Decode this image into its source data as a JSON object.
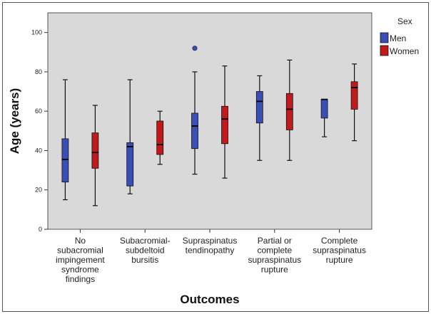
{
  "chart_data": {
    "type": "boxplot",
    "ylabel": "Age (years)",
    "xlabel": "Outcomes",
    "ylim": [
      0,
      110
    ],
    "yticks": [
      0,
      20,
      40,
      60,
      80,
      100
    ],
    "grid": false,
    "legend": {
      "title": "Sex",
      "position": "top-right"
    },
    "categories": [
      [
        "No",
        "subacromial",
        "impingement",
        "syndrome",
        "findings"
      ],
      [
        "Subacromial-",
        "subdeltoid",
        "bursitis"
      ],
      [
        "Supraspinatus",
        "tendinopathy"
      ],
      [
        "Partial or",
        "complete",
        "supraspinatus",
        "rupture"
      ],
      [
        "Complete",
        "supraspinatus",
        "rupture"
      ]
    ],
    "series": [
      {
        "name": "Men",
        "color": "#3a4fb5",
        "boxes": [
          {
            "min": 15,
            "q1": 24,
            "median": 35.5,
            "q3": 46,
            "max": 76
          },
          {
            "min": 18,
            "q1": 22,
            "median": 42,
            "q3": 44,
            "max": 76
          },
          {
            "min": 28,
            "q1": 41,
            "median": 52.5,
            "q3": 59,
            "max": 80,
            "outliers": [
              92
            ]
          },
          {
            "min": 35,
            "q1": 54,
            "median": 65,
            "q3": 70,
            "max": 78
          },
          {
            "min": 47,
            "q1": 56.5,
            "median": 66,
            "q3": 66,
            "max": 66
          }
        ]
      },
      {
        "name": "Women",
        "color": "#c01a1a",
        "boxes": [
          {
            "min": 12,
            "q1": 31,
            "median": 39,
            "q3": 49,
            "max": 63
          },
          {
            "min": 33,
            "q1": 38,
            "median": 43,
            "q3": 55,
            "max": 60
          },
          {
            "min": 26,
            "q1": 43.5,
            "median": 56,
            "q3": 62.5,
            "max": 83
          },
          {
            "min": 35,
            "q1": 50.5,
            "median": 61,
            "q3": 69,
            "max": 86
          },
          {
            "min": 45,
            "q1": 61,
            "median": 72,
            "q3": 75,
            "max": 84
          }
        ]
      }
    ]
  },
  "colors": {
    "plot_background": "#d9d9d9",
    "men": "#3a4fb5",
    "women": "#c01a1a"
  }
}
